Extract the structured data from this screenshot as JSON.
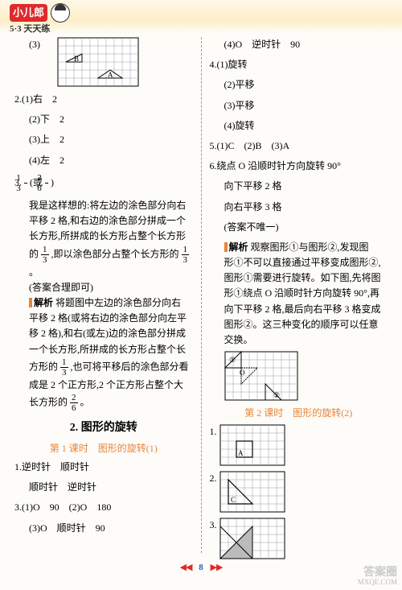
{
  "header": {
    "logo_red": "小儿郎",
    "logo_sub": "5·3 天天练"
  },
  "left": {
    "q1_3_label": "(3)",
    "fig1": {
      "cols": 10,
      "rows": 6,
      "cell": 10,
      "labelB": "B",
      "labelA": "A"
    },
    "q2": {
      "num": "2.",
      "a": "(1)右　2",
      "b": "(2)下　2",
      "c": "(3)上　2",
      "d": "(4)左　2"
    },
    "q3": {
      "num": "3.",
      "frac1_n": "1",
      "frac1_d": "3",
      "or": "(或",
      "frac2_n": "2",
      "frac2_d": "6",
      "close": ")",
      "p1a": "我是这样想的:将左边的涂色部分向右",
      "p1b": "平移 2 格,和右边的涂色部分拼成一个",
      "p1c": "长方形,所拼成的长方形占整个长方形",
      "p1d_pre": "的",
      "p1d_mid": ",即以涂色部分占整个长方形的",
      "p1d_end": "。",
      "p1e": "(答案合理即可)",
      "an_label": "解析",
      "an_a": "将题图中左边的涂色部分向右",
      "an_b": "平移 2 格(或将右边的涂色部分向左平",
      "an_c": "移 2 格),和右(或左)边的涂色部分拼成",
      "an_d": "一个长方形,所拼成的长方形占整个长",
      "an_e_pre": "方形的",
      "an_e_post": ",也可将平移后的涂色部分看",
      "an_f": "成是 2 个正方形,2 个正方形占整个大",
      "an_g_pre": "长方形的",
      "an_g_post": "。"
    },
    "sec2_title": "2. 图形的旋转",
    "sec2_sub": "第 1 课时　图形的旋转(1)",
    "s2q1": {
      "num": "1.",
      "text": "逆时针　顺时针"
    },
    "s2q2": {
      "num": "",
      "text": "顺时针　逆时针"
    },
    "s2q3": {
      "num": "3.",
      "a": "(1)O　90　(2)O　180",
      "b": "(3)O　顺时针　90"
    }
  },
  "right": {
    "r0": "(4)O　逆时针　90",
    "q4": {
      "num": "4.",
      "a": "(1)旋转",
      "b": "(2)平移",
      "c": "(3)平移",
      "d": "(4)旋转"
    },
    "q5": {
      "num": "5.",
      "text": "(1)C　(2)B　(3)A"
    },
    "q6": {
      "num": "6.",
      "a": "绕点 O 沿顺时针方向旋转 90°",
      "b": "向下平移 2 格",
      "c": "向右平移 3 格",
      "d": "(答案不唯一)",
      "an_label": "解析",
      "an_a": "观察图形①与图形②,发现图",
      "an_b": "形①不可以直接通过平移变成图形②,",
      "an_c": "图形①需要进行旋转。如下图,先将图",
      "an_d": "形①绕点 O 沿顺时针方向旋转 90°,再",
      "an_e": "向下平移 2 格,最后向右平移 3 格变成",
      "an_f": "图形②。这三种变化的顺序可以任意",
      "an_g": "交换。"
    },
    "fig2": {
      "cols": 9,
      "rows": 6,
      "cell": 10,
      "labelO": "O",
      "label1": "①",
      "label2": "②"
    },
    "sub2": "第 2 课时　图形的旋转(2)",
    "p1": {
      "num": "1.",
      "cols": 8,
      "rows": 5,
      "cell": 10,
      "labelA": "A"
    },
    "p2": {
      "num": "2.",
      "cols": 8,
      "rows": 5,
      "cell": 10,
      "labelC": "C"
    },
    "p3": {
      "num": "3.",
      "cols": 8,
      "rows": 5,
      "cell": 10
    }
  },
  "footer": {
    "left_arr": "◀◀",
    "page": "8",
    "right_arr": "▶▶"
  },
  "watermark": {
    "l1": "答案圈",
    "l2": "MXQE.COM"
  }
}
